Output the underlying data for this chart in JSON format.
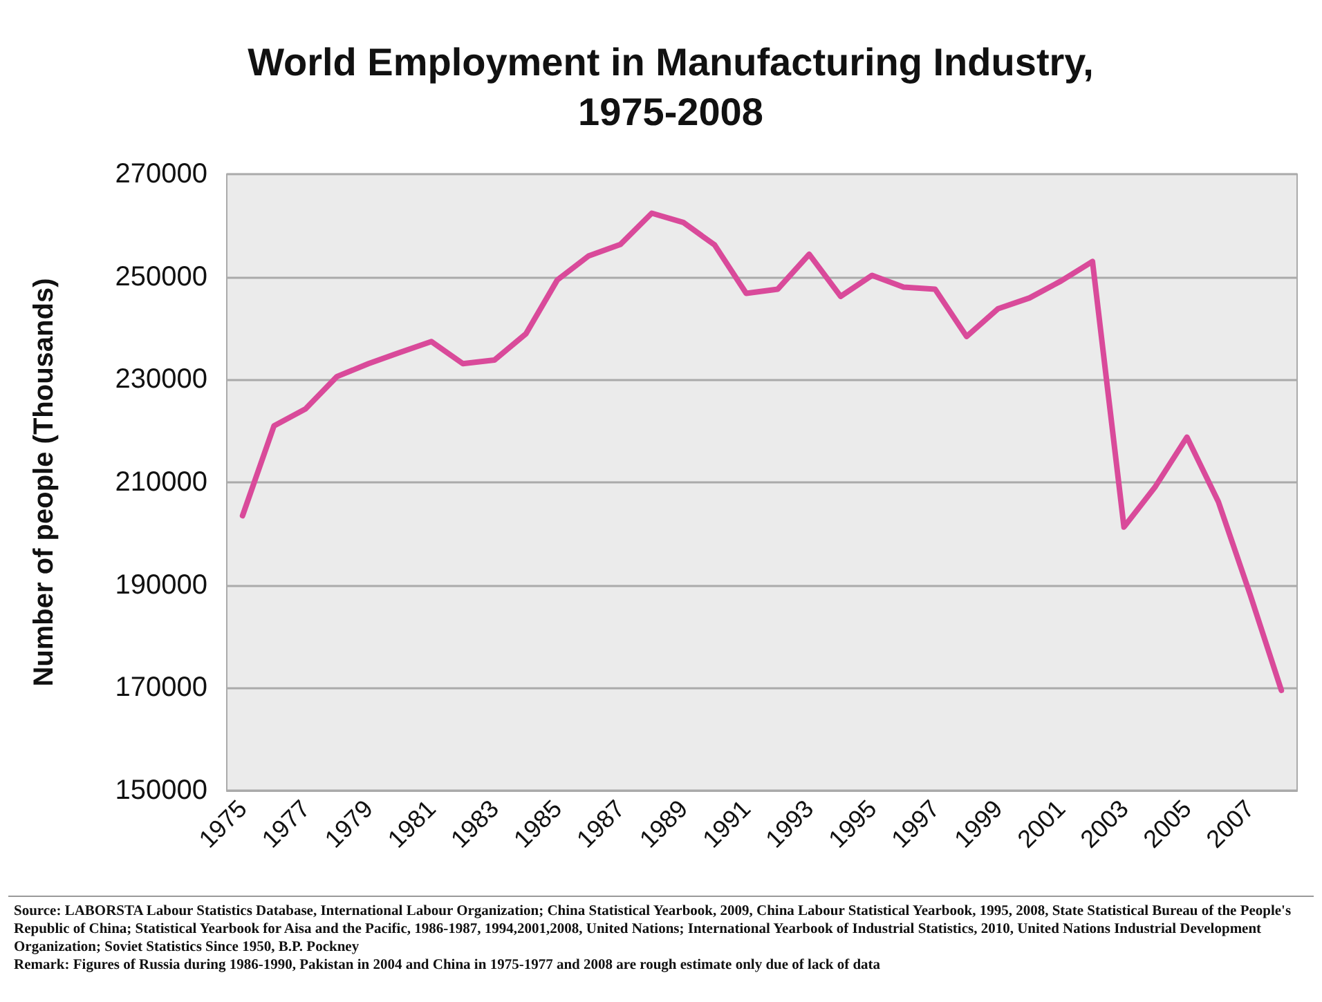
{
  "chart_data": {
    "type": "line",
    "title": "World Employment in Manufacturing Industry,\n1975-2008",
    "ylabel": "Number of people (Thousands)",
    "categories": [
      "1975",
      null,
      "1977",
      null,
      "1979",
      null,
      "1981",
      null,
      "1983",
      null,
      "1985",
      null,
      "1987",
      null,
      "1989",
      null,
      "1991",
      null,
      "1993",
      null,
      "1995",
      null,
      "1997",
      null,
      "1999",
      null,
      "2001",
      null,
      "2003",
      null,
      "2005",
      null,
      "2007",
      null
    ],
    "series": [
      {
        "color": "#d94a9a",
        "values": [
          203500,
          221000,
          224300,
          230600,
          233100,
          235300,
          237400,
          233100,
          233800,
          238900,
          249400,
          254100,
          256300,
          262400,
          260600,
          256200,
          246800,
          247600,
          254400,
          246200,
          250300,
          248000,
          247600,
          238400,
          243800,
          245900,
          249200,
          253000,
          201300,
          209200,
          218800,
          206200,
          188300,
          169500
        ]
      }
    ],
    "ylim": [
      150000,
      270000
    ],
    "yticks": [
      150000,
      170000,
      190000,
      210000,
      230000,
      250000,
      270000
    ],
    "grid": "y",
    "marker": "none",
    "line_style": "solid",
    "annotations": [
      "Source: LABORSTA Labour Statistics Database, International Labour Organization; China Statistical Yearbook, 2009,  China Labour Statistical Yearbook, 1995, 2008, State Statistical Bureau of the People's Republic of China; Statistical Yearbook for Aisa and the Pacific, 1986-1987, 1994,2001,2008, United Nations; International Yearbook of Industrial Statistics, 2010, United Nations Industrial Development Organization; Soviet Statistics Since 1950, B.P. Pockney",
      "Remark: Figures of Russia during 1986-1990, Pakistan in 2004 and China in 1975-1977 and 2008 are rough estimate only due of lack of data"
    ]
  }
}
